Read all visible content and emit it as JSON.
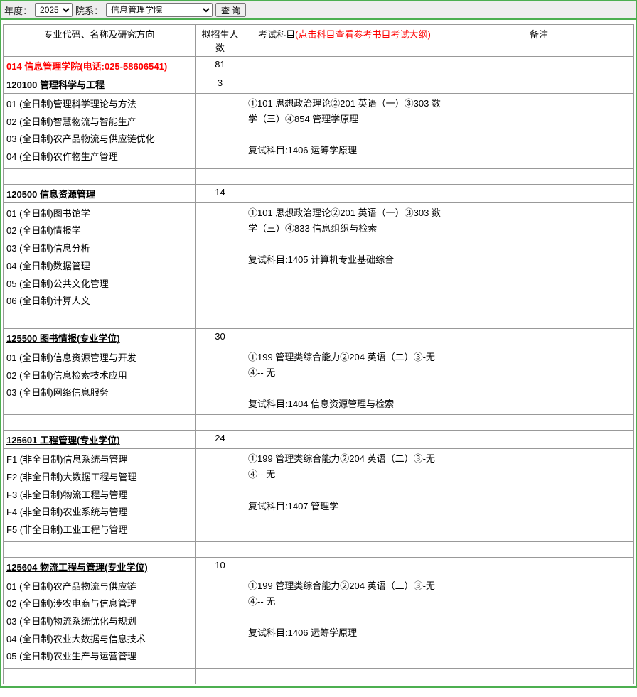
{
  "filters": {
    "year_label": "年度：",
    "year_value": "2025",
    "dept_label": "院系：",
    "dept_value": "信息管理学院",
    "query_btn": "查 询"
  },
  "headers": {
    "name": "专业代码、名称及研究方向",
    "count": "拟招生人数",
    "exam": "考试科目",
    "exam_hint": "(点击科目查看参考书目考试大纲)",
    "note": "备注"
  },
  "school": {
    "label": "014 信息管理学院(电话:025-58606541)",
    "total": "81"
  },
  "sections": [
    {
      "major": "120100 管理科学与工程",
      "count": "3",
      "prof_degree": false,
      "directions": [
        "01 (全日制)管理科学理论与方法",
        "02 (全日制)智慧物流与智能生产",
        "03 (全日制)农产品物流与供应链优化",
        "04 (全日制)农作物生产管理"
      ],
      "exam_init": "①101 思想政治理论②201 英语（一）③303 数学（三）④854 管理学原理",
      "exam_retest": "复试科目:1406 运筹学原理"
    },
    {
      "major": "120500 信息资源管理",
      "count": "14",
      "prof_degree": false,
      "directions": [
        "01 (全日制)图书馆学",
        "02 (全日制)情报学",
        "03 (全日制)信息分析",
        "04 (全日制)数据管理",
        "05 (全日制)公共文化管理",
        "06 (全日制)计算人文"
      ],
      "exam_init": "①101 思想政治理论②201 英语（一）③303 数学（三）④833 信息组织与检索",
      "exam_retest": "复试科目:1405 计算机专业基础综合"
    },
    {
      "major": "125500 图书情报(专业学位)",
      "count": "30",
      "prof_degree": true,
      "directions": [
        "01 (全日制)信息资源管理与开发",
        "02 (全日制)信息检索技术应用",
        "03 (全日制)网络信息服务"
      ],
      "exam_init": "①199 管理类综合能力②204 英语（二）③-无④-- 无",
      "exam_retest": "复试科目:1404 信息资源管理与检索"
    },
    {
      "major": "125601 工程管理(专业学位)",
      "count": "24",
      "prof_degree": true,
      "directions": [
        "F1 (非全日制)信息系统与管理",
        "F2 (非全日制)大数据工程与管理",
        "F3 (非全日制)物流工程与管理",
        "F4 (非全日制)农业系统与管理",
        "F5 (非全日制)工业工程与管理"
      ],
      "exam_init": "①199 管理类综合能力②204 英语（二）③-无④-- 无",
      "exam_retest": "复试科目:1407 管理学"
    },
    {
      "major": "125604 物流工程与管理(专业学位)",
      "count": "10",
      "prof_degree": true,
      "directions": [
        "01 (全日制)农产品物流与供应链",
        "02 (全日制)涉农电商与信息管理",
        "03 (全日制)物流系统优化与规划",
        "04 (全日制)农业大数据与信息技术",
        "05 (全日制)农业生产与运营管理"
      ],
      "exam_init": "①199 管理类综合能力②204 英语（二）③-无④-- 无",
      "exam_retest": "复试科目:1406 运筹学原理"
    }
  ]
}
